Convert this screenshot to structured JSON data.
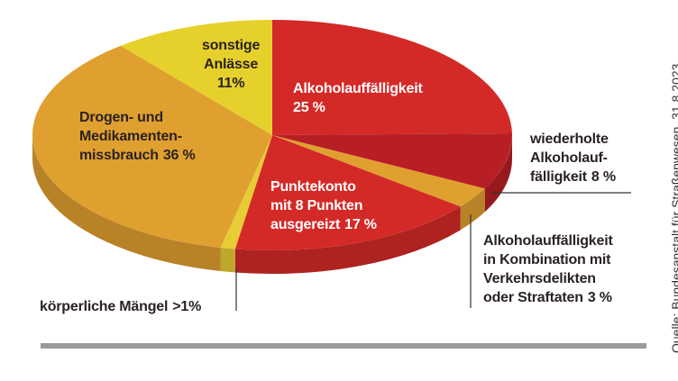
{
  "chart_data": {
    "type": "pie",
    "categories": [
      "Alkoholauffälligkeit",
      "wiederholte\nAlkoholauf-\nfälligkeit",
      "Alkoholauffälligkeit\nin Kombination mit\nVerkehrsdelikten\noder Straftaten",
      "Punktekonto\nmit 8 Punkten\nausgereizt",
      "körperliche Mängel",
      "Drogen- und\nMedikamenten-\nmissbrauch",
      "sonstige\nAnlässe"
    ],
    "values": [
      25,
      8,
      3,
      17,
      1,
      36,
      11
    ],
    "value_labels": [
      "25 %",
      "8 %",
      "3 %",
      "17 %",
      ">1%",
      "36 %",
      "11%"
    ],
    "colors": [
      "#d42a27",
      "#b81f25",
      "#e0a030",
      "#d42a27",
      "#e8cc35",
      "#e0a030",
      "#e6d12c"
    ],
    "source": "Quelle: Bundesanstalt für Straßenwesen, 31.8.2023"
  }
}
